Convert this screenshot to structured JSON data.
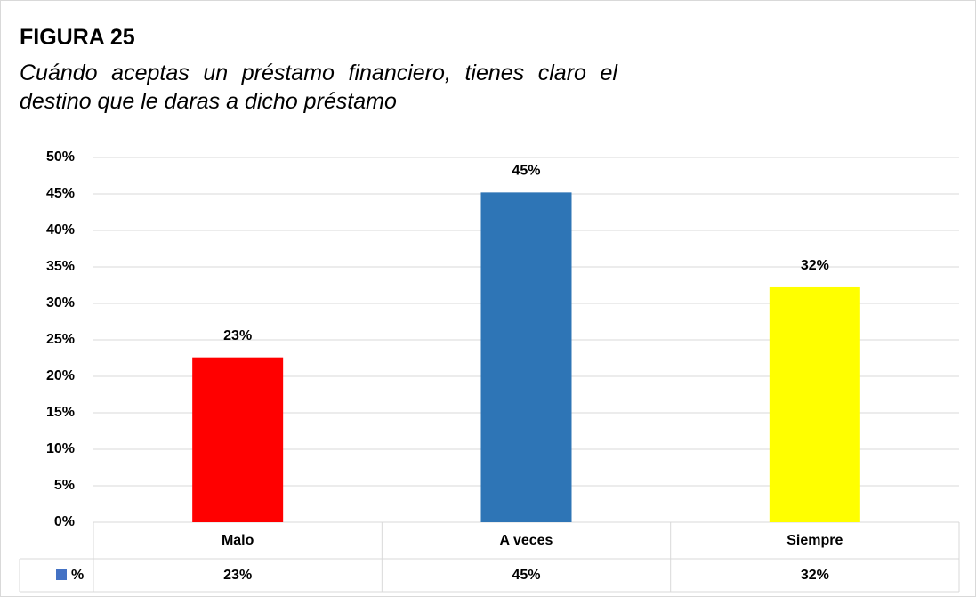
{
  "chart_data": {
    "type": "bar",
    "heading": "FIGURA 25",
    "title": "Cuándo aceptas un préstamo financiero, tienes claro el destino que le daras a dicho préstamo",
    "categories": [
      "Malo",
      "A veces",
      "Siempre"
    ],
    "series": [
      {
        "name": "%",
        "color": "#4472c4",
        "values": [
          22.6,
          45.2,
          32.2
        ],
        "value_labels": [
          "23%",
          "45%",
          "32%"
        ]
      }
    ],
    "bar_colors": [
      "#ff0000",
      "#2e75b6",
      "#ffff00"
    ],
    "ylim": [
      0,
      50
    ],
    "yticks": [
      {
        "value": 0,
        "label": "0%"
      },
      {
        "value": 5,
        "label": "5%"
      },
      {
        "value": 10,
        "label": "10%"
      },
      {
        "value": 15,
        "label": "15%"
      },
      {
        "value": 20,
        "label": "20%"
      },
      {
        "value": 25,
        "label": "25%"
      },
      {
        "value": 30,
        "label": "30%"
      },
      {
        "value": 35,
        "label": "35%"
      },
      {
        "value": 40,
        "label": "40%"
      },
      {
        "value": 45,
        "label": "45%"
      },
      {
        "value": 50,
        "label": "50%"
      }
    ],
    "grid": true,
    "data_table": true
  }
}
